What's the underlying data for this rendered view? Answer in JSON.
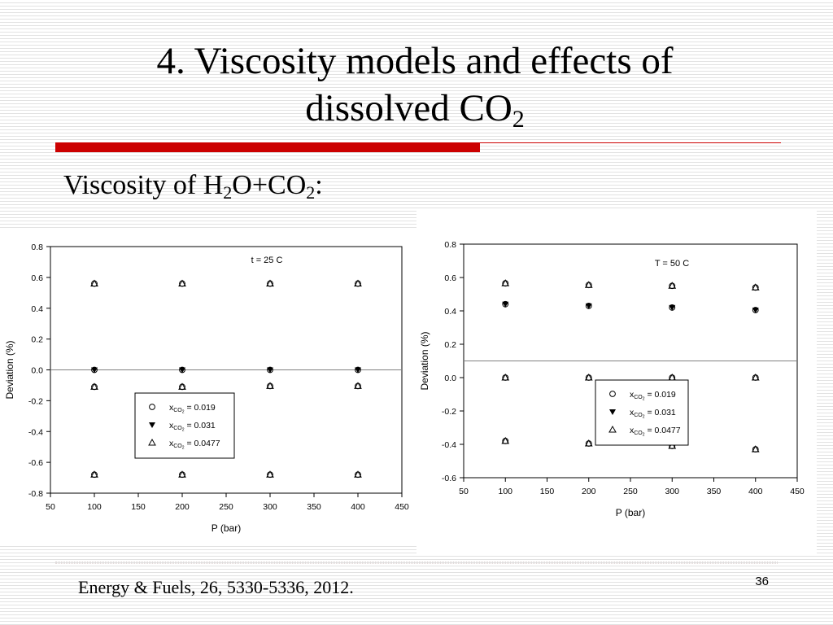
{
  "slide": {
    "title_line1": "4. Viscosity models and effects of",
    "title_line2_main": "dissolved CO",
    "title_line2_sub": "2",
    "subtitle_a": "Viscosity of H",
    "subtitle_sub1": "2",
    "subtitle_b": "O+CO",
    "subtitle_sub2": "2",
    "subtitle_c": ":",
    "citation": "Energy & Fuels, 26, 5330-5336, 2012.",
    "page_number": "36",
    "accent_color": "#cc0000"
  },
  "chart_data": [
    {
      "type": "scatter",
      "annotation": "t = 25 C",
      "xlabel": "P (bar)",
      "ylabel": "Deviation (%)",
      "xlim": [
        50,
        450
      ],
      "ylim": [
        -0.8,
        0.8
      ],
      "xticks": [
        50,
        100,
        150,
        200,
        250,
        300,
        350,
        400,
        450
      ],
      "yticks": [
        -0.8,
        -0.6,
        -0.4,
        -0.2,
        0.0,
        0.2,
        0.4,
        0.6,
        0.8
      ],
      "ytick_labels": [
        "-0.8",
        "-0.6",
        "-0.4",
        "-0.2",
        "0.0",
        "0.2",
        "0.4",
        "0.6",
        "0.8"
      ],
      "reference_line_y": 0.0,
      "grid": false,
      "legend_position": "lower-center",
      "series": [
        {
          "name": "x_CO2 = 0.019",
          "legend_base": "x",
          "legend_sub": "CO",
          "legend_subsub": "2",
          "legend_value": " = 0.019",
          "marker": "circle-open",
          "x": [
            100,
            200,
            300,
            400
          ],
          "y": [
            0.56,
            0.56,
            0.56,
            0.56
          ]
        },
        {
          "name": "x_CO2 = 0.031",
          "legend_base": "x",
          "legend_sub": "CO",
          "legend_subsub": "2",
          "legend_value": " = 0.031",
          "marker": "triangle-down-filled",
          "x": [
            100,
            200,
            300,
            400
          ],
          "y": [
            0.0,
            0.0,
            0.0,
            0.0
          ]
        },
        {
          "name": "x_CO2 = 0.0477",
          "legend_base": "x",
          "legend_sub": "CO",
          "legend_subsub": "2",
          "legend_value": " = 0.0477",
          "marker": "triangle-up-open",
          "x": [
            100,
            200,
            300,
            400
          ],
          "y": [
            -0.11,
            -0.11,
            -0.105,
            -0.105
          ]
        },
        {
          "name": "",
          "marker": "circle-open",
          "x": [
            100,
            200,
            300,
            400
          ],
          "y": [
            -0.68,
            -0.68,
            -0.68,
            -0.68
          ]
        }
      ]
    },
    {
      "type": "scatter",
      "annotation": "T = 50 C",
      "xlabel": "P (bar)",
      "ylabel": "Deviation (%)",
      "xlim": [
        50,
        450
      ],
      "ylim": [
        -0.6,
        0.8
      ],
      "xticks": [
        50,
        100,
        150,
        200,
        250,
        300,
        350,
        400,
        450
      ],
      "yticks": [
        -0.6,
        -0.4,
        -0.2,
        0.0,
        0.2,
        0.4,
        0.6,
        0.8
      ],
      "ytick_labels": [
        "-0.6",
        "-0.4",
        "-0.2",
        "0.0",
        "0.2",
        "0.4",
        "0.6",
        "0.8"
      ],
      "reference_line_y": 0.1,
      "grid": false,
      "legend_position": "center-right",
      "series": [
        {
          "name": "x_CO2 = 0.019",
          "legend_base": "x",
          "legend_sub": "CO",
          "legend_subsub": "2",
          "legend_value": " = 0.019",
          "marker": "circle-open",
          "x": [
            100,
            200,
            300,
            400
          ],
          "y": [
            0.565,
            0.555,
            0.55,
            0.54
          ]
        },
        {
          "name": "x_CO2 = 0.031",
          "legend_base": "x",
          "legend_sub": "CO",
          "legend_subsub": "2",
          "legend_value": " = 0.031",
          "marker": "triangle-down-filled",
          "x": [
            100,
            200,
            300,
            400
          ],
          "y": [
            0.44,
            0.43,
            0.42,
            0.405
          ]
        },
        {
          "name": "x_CO2 = 0.0477",
          "legend_base": "x",
          "legend_sub": "CO",
          "legend_subsub": "2",
          "legend_value": " = 0.0477",
          "marker": "triangle-up-open",
          "x": [
            100,
            200,
            300,
            400
          ],
          "y": [
            0.0,
            0.0,
            0.0,
            0.0
          ]
        },
        {
          "name": "",
          "marker": "circle-open",
          "x": [
            100,
            200,
            300,
            400
          ],
          "y": [
            -0.38,
            -0.395,
            -0.41,
            -0.43
          ]
        }
      ]
    }
  ]
}
